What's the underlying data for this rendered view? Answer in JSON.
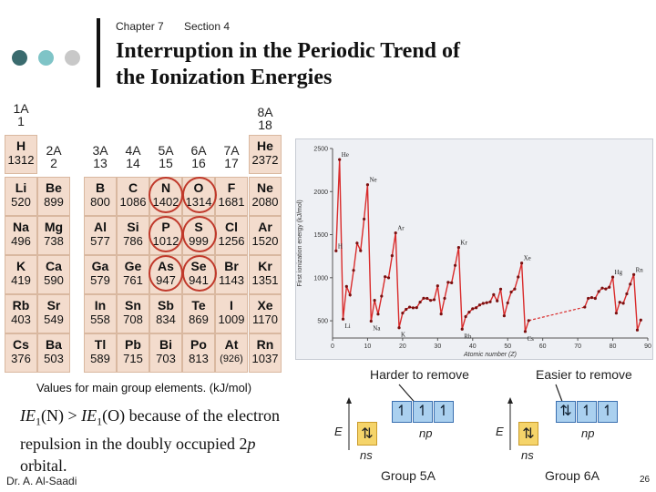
{
  "header": {
    "chapter": "Chapter 7",
    "section": "Section 4"
  },
  "title": {
    "line1": "Interruption in the Periodic Trend of",
    "line2": "the Ionization Energies"
  },
  "colors": {
    "dot1": "#3a6b6e",
    "dot2": "#7fc4c7",
    "dot3": "#c8c8c8",
    "cell_bg": "#f3dccd",
    "ring": "#c0392b",
    "series": "#d92b2b"
  },
  "group_headers": {
    "g1": [
      "1A",
      "1"
    ],
    "g2": [
      "2A",
      "2"
    ],
    "g3": [
      "3A",
      "13"
    ],
    "g4": [
      "4A",
      "14"
    ],
    "g5": [
      "5A",
      "15"
    ],
    "g6": [
      "6A",
      "16"
    ],
    "g7": [
      "7A",
      "17"
    ],
    "g8": [
      "8A",
      "18"
    ]
  },
  "periodic_table": {
    "rows": [
      [
        {
          "sym": "H",
          "ie": "1312"
        },
        null,
        null,
        null,
        null,
        null,
        null,
        {
          "sym": "He",
          "ie": "2372"
        }
      ],
      [
        {
          "sym": "Li",
          "ie": "520"
        },
        {
          "sym": "Be",
          "ie": "899"
        },
        {
          "sym": "B",
          "ie": "800"
        },
        {
          "sym": "C",
          "ie": "1086"
        },
        {
          "sym": "N",
          "ie": "1402"
        },
        {
          "sym": "O",
          "ie": "1314"
        },
        {
          "sym": "F",
          "ie": "1681"
        },
        {
          "sym": "Ne",
          "ie": "2080"
        }
      ],
      [
        {
          "sym": "Na",
          "ie": "496"
        },
        {
          "sym": "Mg",
          "ie": "738"
        },
        {
          "sym": "Al",
          "ie": "577"
        },
        {
          "sym": "Si",
          "ie": "786"
        },
        {
          "sym": "P",
          "ie": "1012"
        },
        {
          "sym": "S",
          "ie": "999"
        },
        {
          "sym": "Cl",
          "ie": "1256"
        },
        {
          "sym": "Ar",
          "ie": "1520"
        }
      ],
      [
        {
          "sym": "K",
          "ie": "419"
        },
        {
          "sym": "Ca",
          "ie": "590"
        },
        {
          "sym": "Ga",
          "ie": "579"
        },
        {
          "sym": "Ge",
          "ie": "761"
        },
        {
          "sym": "As",
          "ie": "947"
        },
        {
          "sym": "Se",
          "ie": "941"
        },
        {
          "sym": "Br",
          "ie": "1143"
        },
        {
          "sym": "Kr",
          "ie": "1351"
        }
      ],
      [
        {
          "sym": "Rb",
          "ie": "403"
        },
        {
          "sym": "Sr",
          "ie": "549"
        },
        {
          "sym": "In",
          "ie": "558"
        },
        {
          "sym": "Sn",
          "ie": "708"
        },
        {
          "sym": "Sb",
          "ie": "834"
        },
        {
          "sym": "Te",
          "ie": "869"
        },
        {
          "sym": "I",
          "ie": "1009"
        },
        {
          "sym": "Xe",
          "ie": "1170"
        }
      ],
      [
        {
          "sym": "Cs",
          "ie": "376"
        },
        {
          "sym": "Ba",
          "ie": "503"
        },
        {
          "sym": "Tl",
          "ie": "589"
        },
        {
          "sym": "Pb",
          "ie": "715"
        },
        {
          "sym": "Bi",
          "ie": "703"
        },
        {
          "sym": "Po",
          "ie": "813"
        },
        {
          "sym": "At",
          "ie": "(926)"
        },
        {
          "sym": "Rn",
          "ie": "1037"
        }
      ]
    ],
    "caption": "Values for main group elements. (kJ/mol)"
  },
  "body_text": {
    "ie": "IE",
    "sub": "1",
    "n_part": "(N) > ",
    "o_part": "(O) because of the electron",
    "line2": "repulsion in the doubly occupied 2",
    "p": "p",
    "line3": "orbital."
  },
  "footer": {
    "author": "Dr. A. Al-Saadi",
    "page": "26"
  },
  "chart_data": {
    "type": "line",
    "title": "",
    "xlabel": "Atomic number (Z)",
    "ylabel": "First ionization energy (kJ/mol)",
    "xlim": [
      0,
      90
    ],
    "ylim": [
      300,
      2500
    ],
    "xticks": [
      "0",
      "10",
      "20",
      "30",
      "40",
      "50",
      "60",
      "70",
      "80",
      "90"
    ],
    "yticks": [
      "500",
      "1000",
      "1500",
      "2000",
      "2500"
    ],
    "grid": false,
    "point_labels": [
      {
        "label": "He",
        "x": 2,
        "y": 2372
      },
      {
        "label": "Ne",
        "x": 10,
        "y": 2080
      },
      {
        "label": "Ar",
        "x": 18,
        "y": 1520
      },
      {
        "label": "Kr",
        "x": 36,
        "y": 1351
      },
      {
        "label": "Xe",
        "x": 54,
        "y": 1170
      },
      {
        "label": "Hg",
        "x": 80,
        "y": 1007
      },
      {
        "label": "Rn",
        "x": 86,
        "y": 1037
      },
      {
        "label": "H",
        "x": 1,
        "y": 1312
      },
      {
        "label": "Li",
        "x": 3,
        "y": 520
      },
      {
        "label": "Na",
        "x": 11,
        "y": 496
      },
      {
        "label": "K",
        "x": 19,
        "y": 419
      },
      {
        "label": "Rb",
        "x": 37,
        "y": 403
      },
      {
        "label": "Cs",
        "x": 55,
        "y": 376
      }
    ],
    "series": [
      {
        "name": "",
        "points": [
          [
            1,
            1312
          ],
          [
            2,
            2372
          ],
          [
            3,
            520
          ],
          [
            4,
            899
          ],
          [
            5,
            800
          ],
          [
            6,
            1086
          ],
          [
            7,
            1402
          ],
          [
            8,
            1314
          ],
          [
            9,
            1681
          ],
          [
            10,
            2080
          ],
          [
            11,
            496
          ],
          [
            12,
            738
          ],
          [
            13,
            577
          ],
          [
            14,
            786
          ],
          [
            15,
            1012
          ],
          [
            16,
            999
          ],
          [
            17,
            1256
          ],
          [
            18,
            1520
          ],
          [
            19,
            419
          ],
          [
            20,
            590
          ],
          [
            21,
            633
          ],
          [
            22,
            659
          ],
          [
            23,
            651
          ],
          [
            24,
            653
          ],
          [
            25,
            717
          ],
          [
            26,
            762
          ],
          [
            27,
            760
          ],
          [
            28,
            737
          ],
          [
            29,
            745
          ],
          [
            30,
            906
          ],
          [
            31,
            579
          ],
          [
            32,
            761
          ],
          [
            33,
            947
          ],
          [
            34,
            941
          ],
          [
            35,
            1143
          ],
          [
            36,
            1351
          ],
          [
            37,
            403
          ],
          [
            38,
            549
          ],
          [
            39,
            600
          ],
          [
            40,
            640
          ],
          [
            41,
            652
          ],
          [
            42,
            684
          ],
          [
            43,
            702
          ],
          [
            44,
            710
          ],
          [
            45,
            720
          ],
          [
            46,
            804
          ],
          [
            47,
            731
          ],
          [
            48,
            868
          ],
          [
            49,
            558
          ],
          [
            50,
            708
          ],
          [
            51,
            834
          ],
          [
            52,
            869
          ],
          [
            53,
            1009
          ],
          [
            54,
            1170
          ],
          [
            55,
            376
          ],
          [
            56,
            503
          ],
          [
            72,
            659
          ],
          [
            73,
            761
          ],
          [
            74,
            770
          ],
          [
            75,
            760
          ],
          [
            76,
            840
          ],
          [
            77,
            880
          ],
          [
            78,
            870
          ],
          [
            79,
            890
          ],
          [
            80,
            1007
          ],
          [
            81,
            589
          ],
          [
            82,
            715
          ],
          [
            83,
            703
          ],
          [
            84,
            813
          ],
          [
            85,
            926
          ],
          [
            86,
            1037
          ],
          [
            87,
            393
          ],
          [
            88,
            509
          ]
        ]
      }
    ],
    "gap": {
      "from": 56,
      "to": 72,
      "style": "dashed"
    }
  },
  "orbital_diagrams": {
    "label_harder": "Harder to remove",
    "label_easier": "Easier to remove",
    "e_label": "E",
    "ns": "ns",
    "np": "np",
    "group5": {
      "label": "Group 5A",
      "ns_box": "⇅",
      "np_boxes": [
        "↿",
        "↿",
        "↿"
      ]
    },
    "group6": {
      "label": "Group 6A",
      "ns_box": "⇅",
      "np_boxes": [
        "⇅",
        "↿",
        "↿"
      ]
    }
  }
}
